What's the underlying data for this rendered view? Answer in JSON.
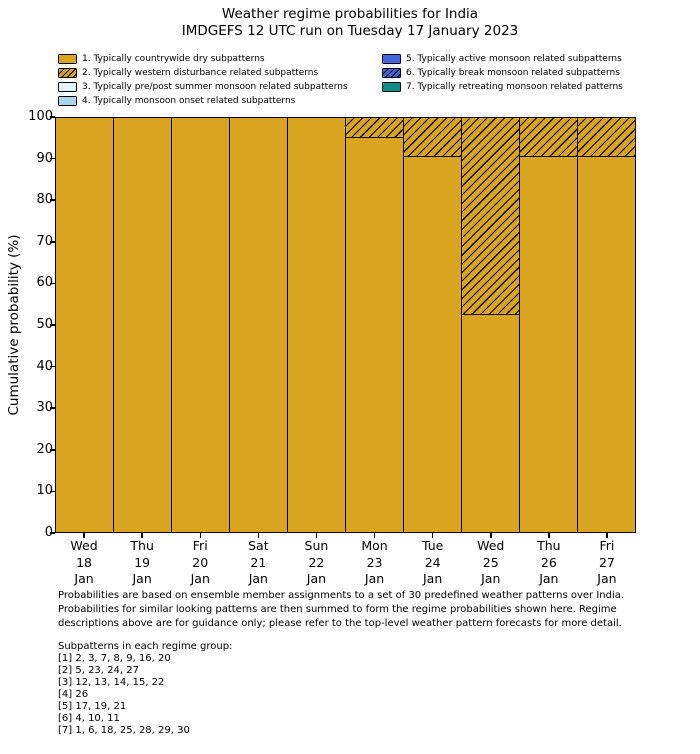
{
  "chart_data": {
    "type": "bar",
    "stacked": true,
    "title": "Weather regime probabilities for India",
    "subtitle": "IMDGEFS 12 UTC run on Tuesday 17 January 2023",
    "ylabel": "Cumulative probability (%)",
    "ylim": [
      0,
      100
    ],
    "yticks": [
      0,
      10,
      20,
      30,
      40,
      50,
      60,
      70,
      80,
      90,
      100
    ],
    "grid": false,
    "legend_position": "top",
    "legend_columns": 2,
    "categories": [
      {
        "day": "Wed",
        "date": "18",
        "month": "Jan"
      },
      {
        "day": "Thu",
        "date": "19",
        "month": "Jan"
      },
      {
        "day": "Fri",
        "date": "20",
        "month": "Jan"
      },
      {
        "day": "Sat",
        "date": "21",
        "month": "Jan"
      },
      {
        "day": "Sun",
        "date": "22",
        "month": "Jan"
      },
      {
        "day": "Mon",
        "date": "23",
        "month": "Jan"
      },
      {
        "day": "Tue",
        "date": "24",
        "month": "Jan"
      },
      {
        "day": "Wed",
        "date": "25",
        "month": "Jan"
      },
      {
        "day": "Thu",
        "date": "26",
        "month": "Jan"
      },
      {
        "day": "Fri",
        "date": "27",
        "month": "Jan"
      }
    ],
    "series": [
      {
        "name": "1. Typically countrywide dry subpatterns",
        "color": "#D9A521",
        "hatch": false,
        "values": [
          100,
          100,
          100,
          100,
          100,
          95.2,
          90.5,
          52.4,
          90.5,
          90.5
        ]
      },
      {
        "name": "2. Typically western disturbance related subpatterns",
        "color": "#D9A521",
        "hatch": true,
        "values": [
          0,
          0,
          0,
          0,
          0,
          4.8,
          9.5,
          47.6,
          9.5,
          9.5
        ]
      },
      {
        "name": "3. Typically pre/post summer monsoon related subpatterns",
        "color": "#E2F3F8",
        "hatch": false,
        "values": [
          0,
          0,
          0,
          0,
          0,
          0,
          0,
          0,
          0,
          0
        ]
      },
      {
        "name": "4. Typically monsoon onset related subpatterns",
        "color": "#A9D5E5",
        "hatch": false,
        "values": [
          0,
          0,
          0,
          0,
          0,
          0,
          0,
          0,
          0,
          0
        ]
      },
      {
        "name": "5. Typically active monsoon related subpatterns",
        "color": "#4166DE",
        "hatch": false,
        "values": [
          0,
          0,
          0,
          0,
          0,
          0,
          0,
          0,
          0,
          0
        ]
      },
      {
        "name": "6. Typically break monsoon related subpatterns",
        "color": "#4166DE",
        "hatch": true,
        "values": [
          0,
          0,
          0,
          0,
          0,
          0,
          0,
          0,
          0,
          0
        ]
      },
      {
        "name": "7. Typically retreating monsoon related patterns",
        "color": "#0E8E85",
        "hatch": false,
        "values": [
          0,
          0,
          0,
          0,
          0,
          0,
          0,
          0,
          0,
          0
        ]
      }
    ],
    "bar_edge_color": "#000000"
  },
  "footnote": {
    "lines": [
      "Probabilities are based on ensemble member assignments to a set of 30 predefined weather patterns over India.",
      "Probabilities for similar looking patterns are then summed to form the regime probabilities shown here. Regime",
      "descriptions above are for guidance only; please refer to the top-level weather pattern forecasts for more detail."
    ]
  },
  "subpatterns": {
    "heading": "Subpatterns in each regime group:",
    "groups": [
      "[1] 2, 3, 7, 8, 9, 16, 20",
      "[2] 5, 23, 24, 27",
      "[3] 12, 13, 14, 15, 22",
      "[4] 26",
      "[5] 17, 19, 21",
      "[6] 4, 10, 11",
      "[7] 1, 6, 18, 25, 28, 29, 30"
    ]
  }
}
